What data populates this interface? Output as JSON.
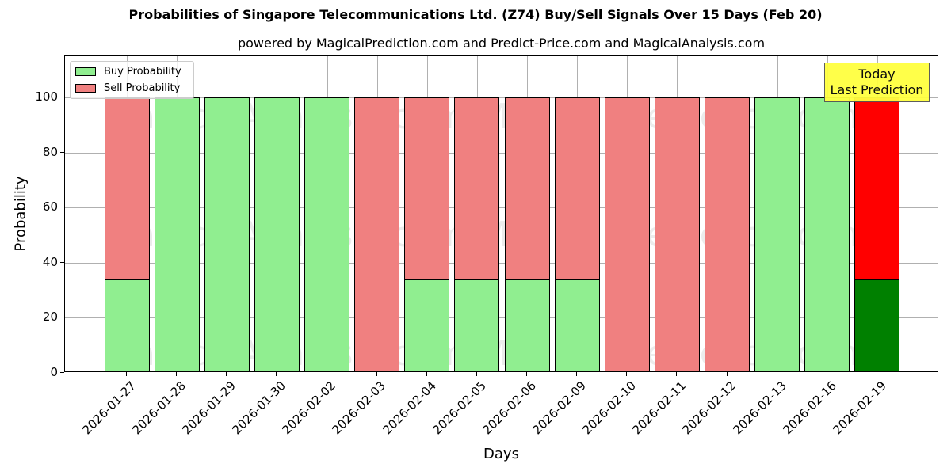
{
  "title": "Probabilities of Singapore Telecommunications Ltd. (Z74) Buy/Sell Signals Over 15 Days (Feb 20)",
  "subtitle": "powered by MagicalPrediction.com and Predict-Price.com and MagicalAnalysis.com",
  "watermarks": [
    "MagicalAnalysis.com",
    "MagicalPrediction.com"
  ],
  "legend": {
    "buy": "Buy Probability",
    "sell": "Sell Probability"
  },
  "annotation": {
    "line1": "Today",
    "line2": "Last Prediction"
  },
  "colors": {
    "buy": "#90ee90",
    "sell": "#f08080",
    "buy_today": "#008000",
    "sell_today": "#ff0000",
    "annotation_bg": "#ffff40"
  },
  "chart_data": {
    "type": "bar",
    "stacked": true,
    "title": "Probabilities of Singapore Telecommunications Ltd. (Z74) Buy/Sell Signals Over 15 Days (Feb 20)",
    "subtitle": "powered by MagicalPrediction.com and Predict-Price.com and MagicalAnalysis.com",
    "xlabel": "Days",
    "ylabel": "Probability",
    "ylim": [
      0,
      115
    ],
    "yticks": [
      0,
      20,
      40,
      60,
      80,
      100
    ],
    "grid": true,
    "legend_position": "upper left",
    "reference_line": {
      "y": 110,
      "style": "dashed",
      "color": "#808080"
    },
    "categories": [
      "2026-01-27",
      "2026-01-28",
      "2026-01-29",
      "2026-01-30",
      "2026-02-02",
      "2026-02-03",
      "2026-02-04",
      "2026-02-05",
      "2026-02-06",
      "2026-02-09",
      "2026-02-10",
      "2026-02-11",
      "2026-02-12",
      "2026-02-13",
      "2026-02-16",
      "2026-02-19"
    ],
    "series": [
      {
        "name": "Buy Probability",
        "values": [
          34,
          100,
          100,
          100,
          100,
          0,
          34,
          34,
          34,
          34,
          0,
          0,
          0,
          100,
          100,
          34
        ]
      },
      {
        "name": "Sell Probability",
        "values": [
          66,
          0,
          0,
          0,
          0,
          100,
          66,
          66,
          66,
          66,
          100,
          100,
          100,
          0,
          0,
          66
        ]
      }
    ],
    "annotations": [
      {
        "text": "Today\nLast Prediction",
        "x": "2026-02-19",
        "y": 110
      }
    ]
  }
}
